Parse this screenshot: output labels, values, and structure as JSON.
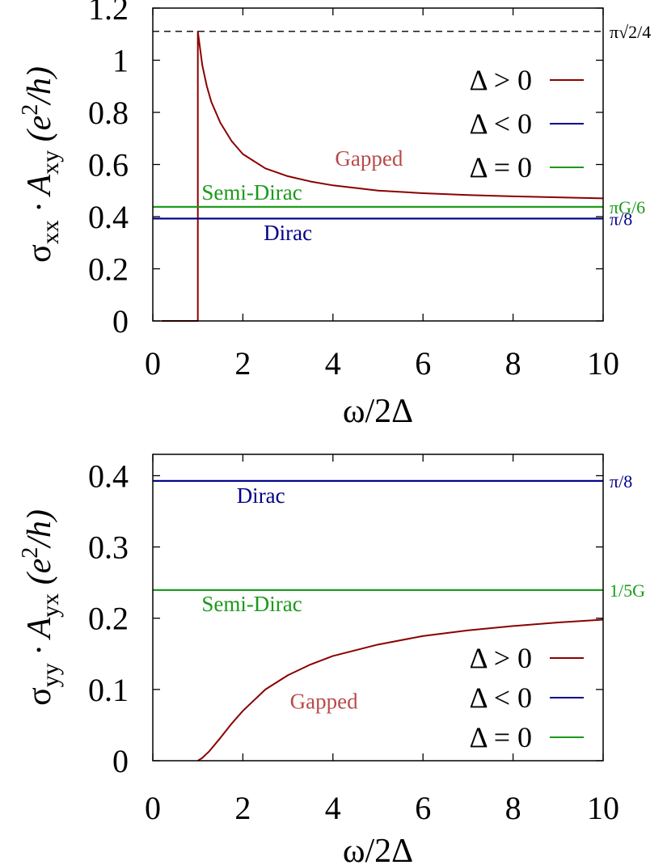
{
  "chart_data": [
    {
      "type": "line",
      "xlabel": "ω/2Δ",
      "ylabel_main": "σ",
      "ylabel_sub1": "xx",
      "ylabel_mid": " · A",
      "ylabel_sub2": "xy",
      "ylabel_unit_open": " (e",
      "ylabel_unit_sup": "2",
      "ylabel_unit_close": "/h)",
      "xlim": [
        0,
        10
      ],
      "ylim": [
        0,
        1.2
      ],
      "xticks": [
        0,
        2,
        4,
        6,
        8,
        10
      ],
      "yticks": [
        0,
        0.2,
        0.4,
        0.6,
        0.8,
        1,
        1.2
      ],
      "ytick_labels": [
        "0",
        "0.2",
        "0.4",
        "0.6",
        "0.8",
        "1",
        "1.2"
      ],
      "legend_position": "top-right",
      "legend": [
        {
          "label": "Δ > 0",
          "color": "#8b0000"
        },
        {
          "label": "Δ < 0",
          "color": "#00008b"
        },
        {
          "label": "Δ = 0",
          "color": "#1a9a1a"
        }
      ],
      "reference_lines": [
        {
          "y": 1.1107,
          "label": "π√2/4",
          "style": "dashed",
          "color": "#000000"
        },
        {
          "y": 0.4375,
          "label": "πG/6",
          "color": "#1a9a1a"
        },
        {
          "y": 0.3927,
          "label": "π/8",
          "color": "#00008b"
        }
      ],
      "curve_labels": [
        {
          "text": "Gapped",
          "color": "#b84a4a",
          "x": 4.8,
          "y": 0.595
        },
        {
          "text": "Semi-Dirac",
          "color": "#1a9a1a",
          "x": 2.2,
          "y": 0.465
        },
        {
          "text": "Dirac",
          "color": "#00008b",
          "x": 3.0,
          "y": 0.31
        }
      ],
      "series": [
        {
          "color": "#8b0000",
          "x": [
            0.2,
            0.99,
            1.0,
            1.0,
            1.1,
            1.2,
            1.3,
            1.5,
            1.75,
            2.0,
            2.5,
            3.0,
            3.5,
            4.0,
            5.0,
            6.0,
            7.0,
            8.0,
            9.0,
            10.0
          ],
          "y": [
            0.0,
            0.0,
            0.0,
            1.11,
            0.98,
            0.9,
            0.84,
            0.76,
            0.69,
            0.64,
            0.585,
            0.555,
            0.535,
            0.52,
            0.5,
            0.49,
            0.483,
            0.478,
            0.474,
            0.47
          ]
        },
        {
          "color": "#00008b",
          "x": [
            0,
            10
          ],
          "y": [
            0.3927,
            0.3927
          ]
        },
        {
          "color": "#1a9a1a",
          "x": [
            0,
            10
          ],
          "y": [
            0.4375,
            0.4375
          ]
        }
      ]
    },
    {
      "type": "line",
      "xlabel": "ω/2Δ",
      "ylabel_main": "σ",
      "ylabel_sub1": "yy",
      "ylabel_mid": " · A",
      "ylabel_sub2": "yx",
      "ylabel_unit_open": " (e",
      "ylabel_unit_sup": "2",
      "ylabel_unit_close": "/h)",
      "xlim": [
        0,
        10
      ],
      "ylim": [
        0,
        0.43
      ],
      "xticks": [
        0,
        2,
        4,
        6,
        8,
        10
      ],
      "yticks": [
        0,
        0.1,
        0.2,
        0.3,
        0.4
      ],
      "ytick_labels": [
        "0",
        "0.1",
        "0.2",
        "0.3",
        "0.4"
      ],
      "legend_position": "bottom-right",
      "legend": [
        {
          "label": "Δ > 0",
          "color": "#8b0000"
        },
        {
          "label": "Δ < 0",
          "color": "#00008b"
        },
        {
          "label": "Δ = 0",
          "color": "#1a9a1a"
        }
      ],
      "reference_lines": [
        {
          "y": 0.3927,
          "label": "π/8",
          "color": "#00008b"
        },
        {
          "y": 0.2396,
          "label": "1/5G",
          "color": "#1a9a1a"
        }
      ],
      "curve_labels": [
        {
          "text": "Dirac",
          "color": "#00008b",
          "x": 2.4,
          "y": 0.362
        },
        {
          "text": "Semi-Dirac",
          "color": "#1a9a1a",
          "x": 2.2,
          "y": 0.21
        },
        {
          "text": "Gapped",
          "color": "#b84a4a",
          "x": 3.8,
          "y": 0.073
        }
      ],
      "series": [
        {
          "color": "#8b0000",
          "x": [
            1.0,
            1.1,
            1.25,
            1.5,
            1.75,
            2.0,
            2.5,
            3.0,
            3.5,
            4.0,
            5.0,
            6.0,
            7.0,
            8.0,
            9.0,
            10.0
          ],
          "y": [
            0.0,
            0.004,
            0.013,
            0.032,
            0.052,
            0.07,
            0.1,
            0.12,
            0.135,
            0.147,
            0.163,
            0.175,
            0.183,
            0.189,
            0.194,
            0.198
          ]
        },
        {
          "color": "#00008b",
          "x": [
            0,
            10
          ],
          "y": [
            0.3927,
            0.3927
          ]
        },
        {
          "color": "#1a9a1a",
          "x": [
            0,
            10
          ],
          "y": [
            0.2396,
            0.2396
          ]
        }
      ]
    }
  ]
}
